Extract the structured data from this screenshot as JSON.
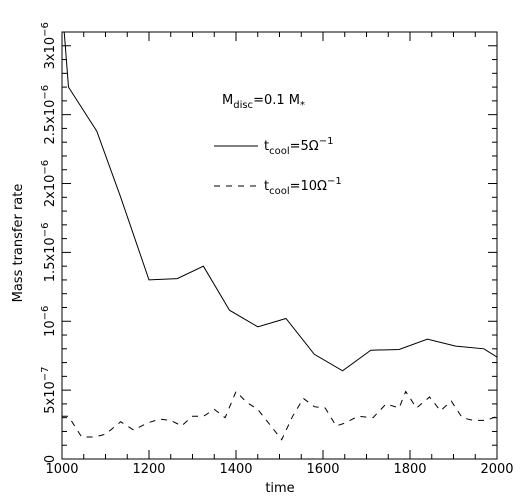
{
  "chart_data": {
    "type": "line",
    "xlabel": "time",
    "ylabel": "Mass transfer rate",
    "xlim": [
      1000,
      2000
    ],
    "ylim": [
      0,
      3.1e-06
    ],
    "grid": false,
    "x_ticks": [
      {
        "value": 1000,
        "label": "1000"
      },
      {
        "value": 1200,
        "label": "1200"
      },
      {
        "value": 1400,
        "label": "1400"
      },
      {
        "value": 1600,
        "label": "1600"
      },
      {
        "value": 1800,
        "label": "1800"
      },
      {
        "value": 2000,
        "label": "2000"
      }
    ],
    "y_ticks": [
      {
        "value": 0,
        "mant": "0",
        "exp": ""
      },
      {
        "value": 5e-07,
        "mant": "5x10",
        "exp": "−7"
      },
      {
        "value": 1e-06,
        "mant": "10",
        "exp": "−6"
      },
      {
        "value": 1.5e-06,
        "mant": "1.5x10",
        "exp": "−6"
      },
      {
        "value": 2e-06,
        "mant": "2x10",
        "exp": "−6"
      },
      {
        "value": 2.5e-06,
        "mant": "2.5x10",
        "exp": "−6"
      },
      {
        "value": 3e-06,
        "mant": "3x10",
        "exp": "−6"
      }
    ],
    "annotation": {
      "m": "M",
      "sub1": "disc",
      "eq": "=0.1  M",
      "sub2": "*"
    },
    "series": [
      {
        "style": "solid",
        "legend": {
          "t": "t",
          "sub": "cool",
          "eq": "=5Ω",
          "sup": "−1"
        },
        "x": [
          1005,
          1015,
          1080,
          1135,
          1200,
          1265,
          1325,
          1385,
          1450,
          1515,
          1580,
          1645,
          1710,
          1775,
          1840,
          1905,
          1970,
          2000
        ],
        "y": [
          3.1e-06,
          2.7e-06,
          2.38e-06,
          1.9e-06,
          1.3e-06,
          1.31e-06,
          1.4e-06,
          1.08e-06,
          9.6e-07,
          1.02e-06,
          7.6e-07,
          6.4e-07,
          7.9e-07,
          7.95e-07,
          8.7e-07,
          8.2e-07,
          8e-07,
          7.4e-07
        ]
      },
      {
        "style": "dashed",
        "legend": {
          "t": "t",
          "sub": "cool",
          "eq": "=10Ω",
          "sup": "−1"
        },
        "x": [
          1000,
          1015,
          1045,
          1075,
          1100,
          1135,
          1165,
          1195,
          1225,
          1250,
          1275,
          1300,
          1325,
          1350,
          1375,
          1400,
          1425,
          1450,
          1480,
          1505,
          1530,
          1555,
          1580,
          1605,
          1630,
          1650,
          1680,
          1715,
          1745,
          1775,
          1790,
          1815,
          1845,
          1870,
          1895,
          1920,
          1945,
          1975,
          2000
        ],
        "y": [
          3.1e-07,
          3.1e-07,
          1.6e-07,
          1.6e-07,
          1.8e-07,
          2.7e-07,
          2.1e-07,
          2.6e-07,
          2.9e-07,
          2.8e-07,
          2.4e-07,
          3.1e-07,
          3.1e-07,
          3.6e-07,
          3e-07,
          4.9e-07,
          4.1e-07,
          3.6e-07,
          2.4e-07,
          1.4e-07,
          3.1e-07,
          4.4e-07,
          3.8e-07,
          3.7e-07,
          2.4e-07,
          2.6e-07,
          3.1e-07,
          3e-07,
          4e-07,
          3.7e-07,
          4.9e-07,
          3.7e-07,
          4.5e-07,
          3.5e-07,
          4.2e-07,
          3e-07,
          2.8e-07,
          2.8e-07,
          3.1e-07
        ]
      }
    ]
  }
}
